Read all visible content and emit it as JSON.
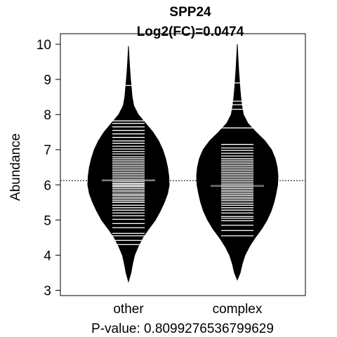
{
  "chart_data": {
    "type": "beanplot",
    "title": "SPP24",
    "subtitle": "Log2(FC)=0.0474",
    "xlabel": "P-value: 0.8099276536799629",
    "ylabel": "Abundance",
    "ylim": [
      2.85,
      10.3
    ],
    "yticks": [
      3,
      4,
      5,
      6,
      7,
      8,
      9,
      10
    ],
    "categories": [
      "other",
      "complex"
    ],
    "overall_mean": 6.12,
    "groups": [
      {
        "name": "other",
        "mean": 6.13,
        "density": [
          {
            "y": 3.25,
            "w": 0.0
          },
          {
            "y": 3.5,
            "w": 0.06
          },
          {
            "y": 3.75,
            "w": 0.1
          },
          {
            "y": 4.0,
            "w": 0.15
          },
          {
            "y": 4.25,
            "w": 0.24
          },
          {
            "y": 4.5,
            "w": 0.35
          },
          {
            "y": 4.75,
            "w": 0.5
          },
          {
            "y": 5.0,
            "w": 0.66
          },
          {
            "y": 5.25,
            "w": 0.78
          },
          {
            "y": 5.5,
            "w": 0.88
          },
          {
            "y": 5.75,
            "w": 0.96
          },
          {
            "y": 6.0,
            "w": 1.0
          },
          {
            "y": 6.25,
            "w": 0.99
          },
          {
            "y": 6.5,
            "w": 0.96
          },
          {
            "y": 6.75,
            "w": 0.91
          },
          {
            "y": 7.0,
            "w": 0.84
          },
          {
            "y": 7.25,
            "w": 0.74
          },
          {
            "y": 7.5,
            "w": 0.6
          },
          {
            "y": 7.75,
            "w": 0.42
          },
          {
            "y": 8.0,
            "w": 0.24
          },
          {
            "y": 8.25,
            "w": 0.13
          },
          {
            "y": 8.5,
            "w": 0.09
          },
          {
            "y": 8.75,
            "w": 0.07
          },
          {
            "y": 9.0,
            "w": 0.05
          },
          {
            "y": 9.25,
            "w": 0.035
          },
          {
            "y": 9.5,
            "w": 0.02
          },
          {
            "y": 9.75,
            "w": 0.008
          },
          {
            "y": 9.95,
            "w": 0.0
          }
        ],
        "points": [
          4.3,
          4.42,
          4.55,
          4.62,
          4.78,
          4.9,
          5.02,
          5.12,
          5.2,
          5.28,
          5.35,
          5.42,
          5.5,
          5.55,
          5.6,
          5.65,
          5.7,
          5.74,
          5.8,
          5.85,
          5.9,
          5.95,
          5.98,
          6.02,
          6.05,
          6.1,
          6.15,
          6.2,
          6.25,
          6.3,
          6.35,
          6.4,
          6.45,
          6.5,
          6.55,
          6.6,
          6.65,
          6.7,
          6.75,
          6.8,
          6.88,
          6.95,
          7.02,
          7.1,
          7.18,
          7.25,
          7.35,
          7.45,
          7.55,
          7.65,
          7.75,
          7.82,
          8.83
        ]
      },
      {
        "name": "complex",
        "mean": 5.97,
        "density": [
          {
            "y": 3.3,
            "w": 0.0
          },
          {
            "y": 3.5,
            "w": 0.07
          },
          {
            "y": 3.75,
            "w": 0.12
          },
          {
            "y": 4.0,
            "w": 0.19
          },
          {
            "y": 4.25,
            "w": 0.3
          },
          {
            "y": 4.5,
            "w": 0.44
          },
          {
            "y": 4.75,
            "w": 0.6
          },
          {
            "y": 5.0,
            "w": 0.73
          },
          {
            "y": 5.25,
            "w": 0.83
          },
          {
            "y": 5.5,
            "w": 0.9
          },
          {
            "y": 5.75,
            "w": 0.95
          },
          {
            "y": 6.0,
            "w": 0.99
          },
          {
            "y": 6.25,
            "w": 1.0
          },
          {
            "y": 6.5,
            "w": 0.98
          },
          {
            "y": 6.75,
            "w": 0.93
          },
          {
            "y": 7.0,
            "w": 0.84
          },
          {
            "y": 7.25,
            "w": 0.68
          },
          {
            "y": 7.5,
            "w": 0.46
          },
          {
            "y": 7.75,
            "w": 0.26
          },
          {
            "y": 8.0,
            "w": 0.15
          },
          {
            "y": 8.25,
            "w": 0.11
          },
          {
            "y": 8.5,
            "w": 0.085
          },
          {
            "y": 8.75,
            "w": 0.065
          },
          {
            "y": 9.0,
            "w": 0.05
          },
          {
            "y": 9.25,
            "w": 0.035
          },
          {
            "y": 9.5,
            "w": 0.022
          },
          {
            "y": 9.75,
            "w": 0.01
          },
          {
            "y": 10.0,
            "w": 0.0
          }
        ],
        "points": [
          4.55,
          4.7,
          4.85,
          4.98,
          5.05,
          5.1,
          5.2,
          5.28,
          5.35,
          5.42,
          5.48,
          5.55,
          5.6,
          5.65,
          5.7,
          5.75,
          5.8,
          5.85,
          5.9,
          5.95,
          6.0,
          6.05,
          6.1,
          6.15,
          6.2,
          6.25,
          6.3,
          6.35,
          6.4,
          6.45,
          6.5,
          6.55,
          6.6,
          6.65,
          6.7,
          6.75,
          6.82,
          6.9,
          6.98,
          7.05,
          7.15,
          7.62,
          8.15,
          8.28,
          8.38,
          8.9
        ]
      }
    ]
  }
}
